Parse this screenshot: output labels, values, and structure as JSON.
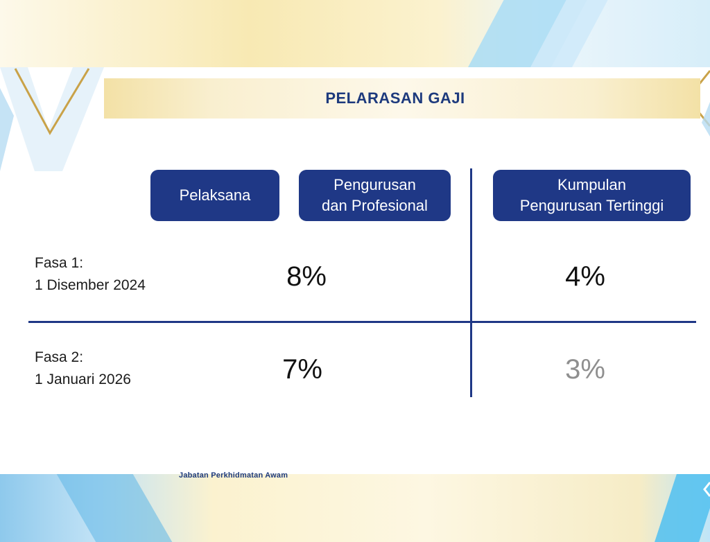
{
  "title": "PELARASAN GAJI",
  "columns": [
    "Pelaksana",
    "Pengurusan\ndan Profesional",
    "Kumpulan\nPengurusan Tertinggi"
  ],
  "rows": [
    {
      "label": "Fasa 1:\n1 Disember 2024",
      "value_left": "8%",
      "value_right": "4%"
    },
    {
      "label": "Fasa 2:\n1 Januari 2026",
      "value_left": "7%",
      "value_right": "3%"
    }
  ],
  "footer": "Jabatan Perkhidmatan Awam",
  "colors": {
    "navy": "#1f3886",
    "gold": "#c9a248",
    "faded": "#8f8f8f"
  },
  "chart_data": {
    "type": "table",
    "title": "PELARASAN GAJI",
    "columns": [
      "Pelaksana",
      "Pengurusan dan Profesional",
      "Kumpulan Pengurusan Tertinggi"
    ],
    "rows": [
      {
        "label": "Fasa 1: 1 Disember 2024",
        "Pelaksana & Pengurusan dan Profesional": "8%",
        "Kumpulan Pengurusan Tertinggi": "4%"
      },
      {
        "label": "Fasa 2: 1 Januari 2026",
        "Pelaksana & Pengurusan dan Profesional": "7%",
        "Kumpulan Pengurusan Tertinggi": "3%"
      }
    ]
  }
}
